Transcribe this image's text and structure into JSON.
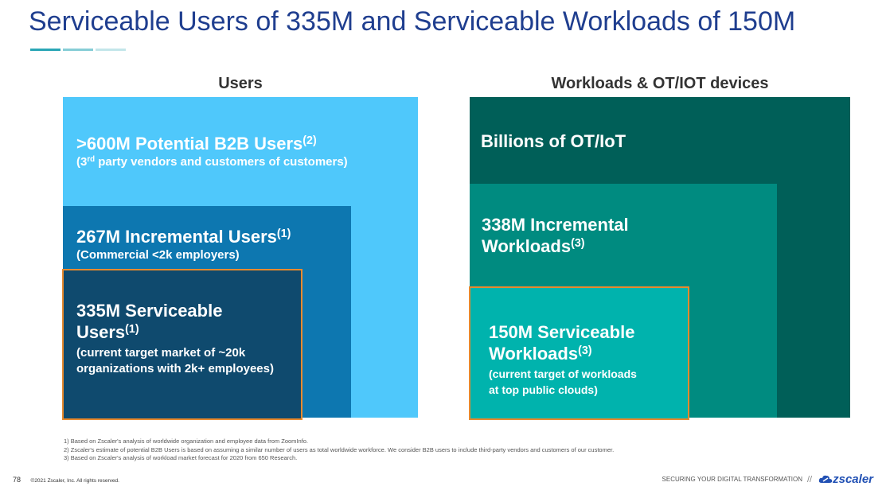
{
  "title": "Serviceable Users of 335M and Serviceable Workloads of 150M",
  "users": {
    "heading": "Users",
    "outer": {
      "title": ">600M Potential B2B Users",
      "title_ref": "(2)",
      "sub_pre": "(3",
      "sub_sup": "rd",
      "sub_post": " party vendors and customers of customers)"
    },
    "middle": {
      "title": "267M Incremental Users",
      "title_ref": "(1)",
      "sub": "(Commercial <2k employers)"
    },
    "inner": {
      "title_line1": "335M Serviceable",
      "title_line2": "Users",
      "title_ref": "(1)",
      "sub_line1": "(current target market of ~20k",
      "sub_line2": "organizations with 2k+ employees)"
    }
  },
  "workloads": {
    "heading": "Workloads & OT/IOT devices",
    "outer": {
      "title": "Billions of OT/IoT"
    },
    "middle": {
      "title_line1": "338M Incremental",
      "title_line2": "Workloads",
      "title_ref": "(3)"
    },
    "inner": {
      "title_line1": "150M Serviceable",
      "title_line2": "Workloads",
      "title_ref": "(3)",
      "sub_line1": "(current target of workloads",
      "sub_line2": "at top public clouds)"
    }
  },
  "footnotes": [
    "1)  Based on Zscaler's analysis of worldwide organization and employee data from ZoomInfo.",
    "2)  Zscaler's estimate of potential B2B Users is based on assuming a similar number of users as total worldwide workforce.  We consider B2B users to include third-party vendors and customers of our customer.",
    "3)  Based on Zscaler's analysis of workload market forecast for 2020 from 650 Research."
  ],
  "footer": {
    "page_number": "78",
    "copyright": "©2021 Zscaler, Inc. All rights reserved.",
    "tagline": "SECURING YOUR DIGITAL TRANSFORMATION",
    "divider": "//",
    "logo_text": "zscaler"
  },
  "colors": {
    "title": "#1f3e8f",
    "users_outer": "#4fc8fb",
    "users_middle": "#0d77b0",
    "users_inner": "#0f4a6e",
    "workloads_outer": "#005f58",
    "workloads_middle": "#008b80",
    "workloads_inner": "#00b3ad",
    "highlight_border": "#e88a2e"
  }
}
